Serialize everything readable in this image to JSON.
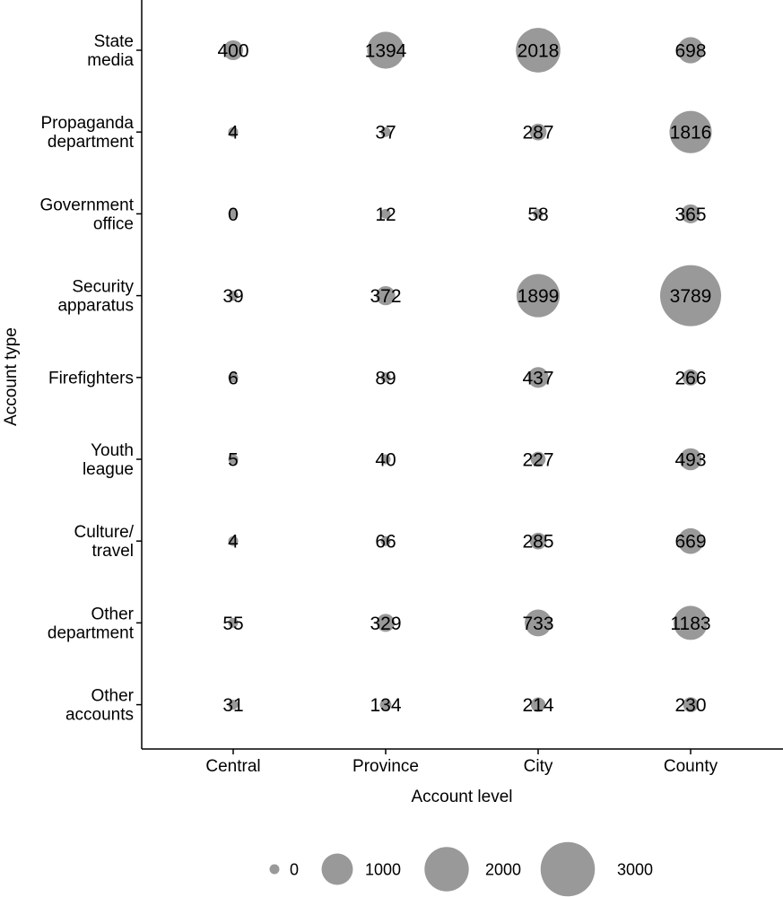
{
  "chart_data": {
    "type": "bubble-grid",
    "xlabel": "Account level",
    "ylabel": "Account type",
    "x_categories": [
      "Central",
      "Province",
      "City",
      "County"
    ],
    "y_categories": [
      [
        "State",
        "media"
      ],
      [
        "Propaganda",
        "department"
      ],
      [
        "Government",
        "office"
      ],
      [
        "Security",
        "apparatus"
      ],
      [
        "Firefighters"
      ],
      [
        "Youth",
        "league"
      ],
      [
        "Culture/",
        "travel"
      ],
      [
        "Other",
        "department"
      ],
      [
        "Other",
        "accounts"
      ]
    ],
    "values": [
      [
        400,
        1394,
        2018,
        698
      ],
      [
        4,
        37,
        287,
        1816
      ],
      [
        0,
        12,
        58,
        365
      ],
      [
        39,
        372,
        1899,
        3789
      ],
      [
        6,
        89,
        437,
        266
      ],
      [
        5,
        40,
        227,
        493
      ],
      [
        4,
        66,
        285,
        669
      ],
      [
        55,
        329,
        733,
        1183
      ],
      [
        31,
        134,
        214,
        230
      ]
    ],
    "legend": {
      "position": "bottom",
      "values": [
        0,
        1000,
        2000,
        3000
      ],
      "labels": [
        "0",
        "1000",
        "2000",
        "3000"
      ]
    },
    "bubble_color": "#999999",
    "axis_color": "#000000",
    "grid": false
  }
}
